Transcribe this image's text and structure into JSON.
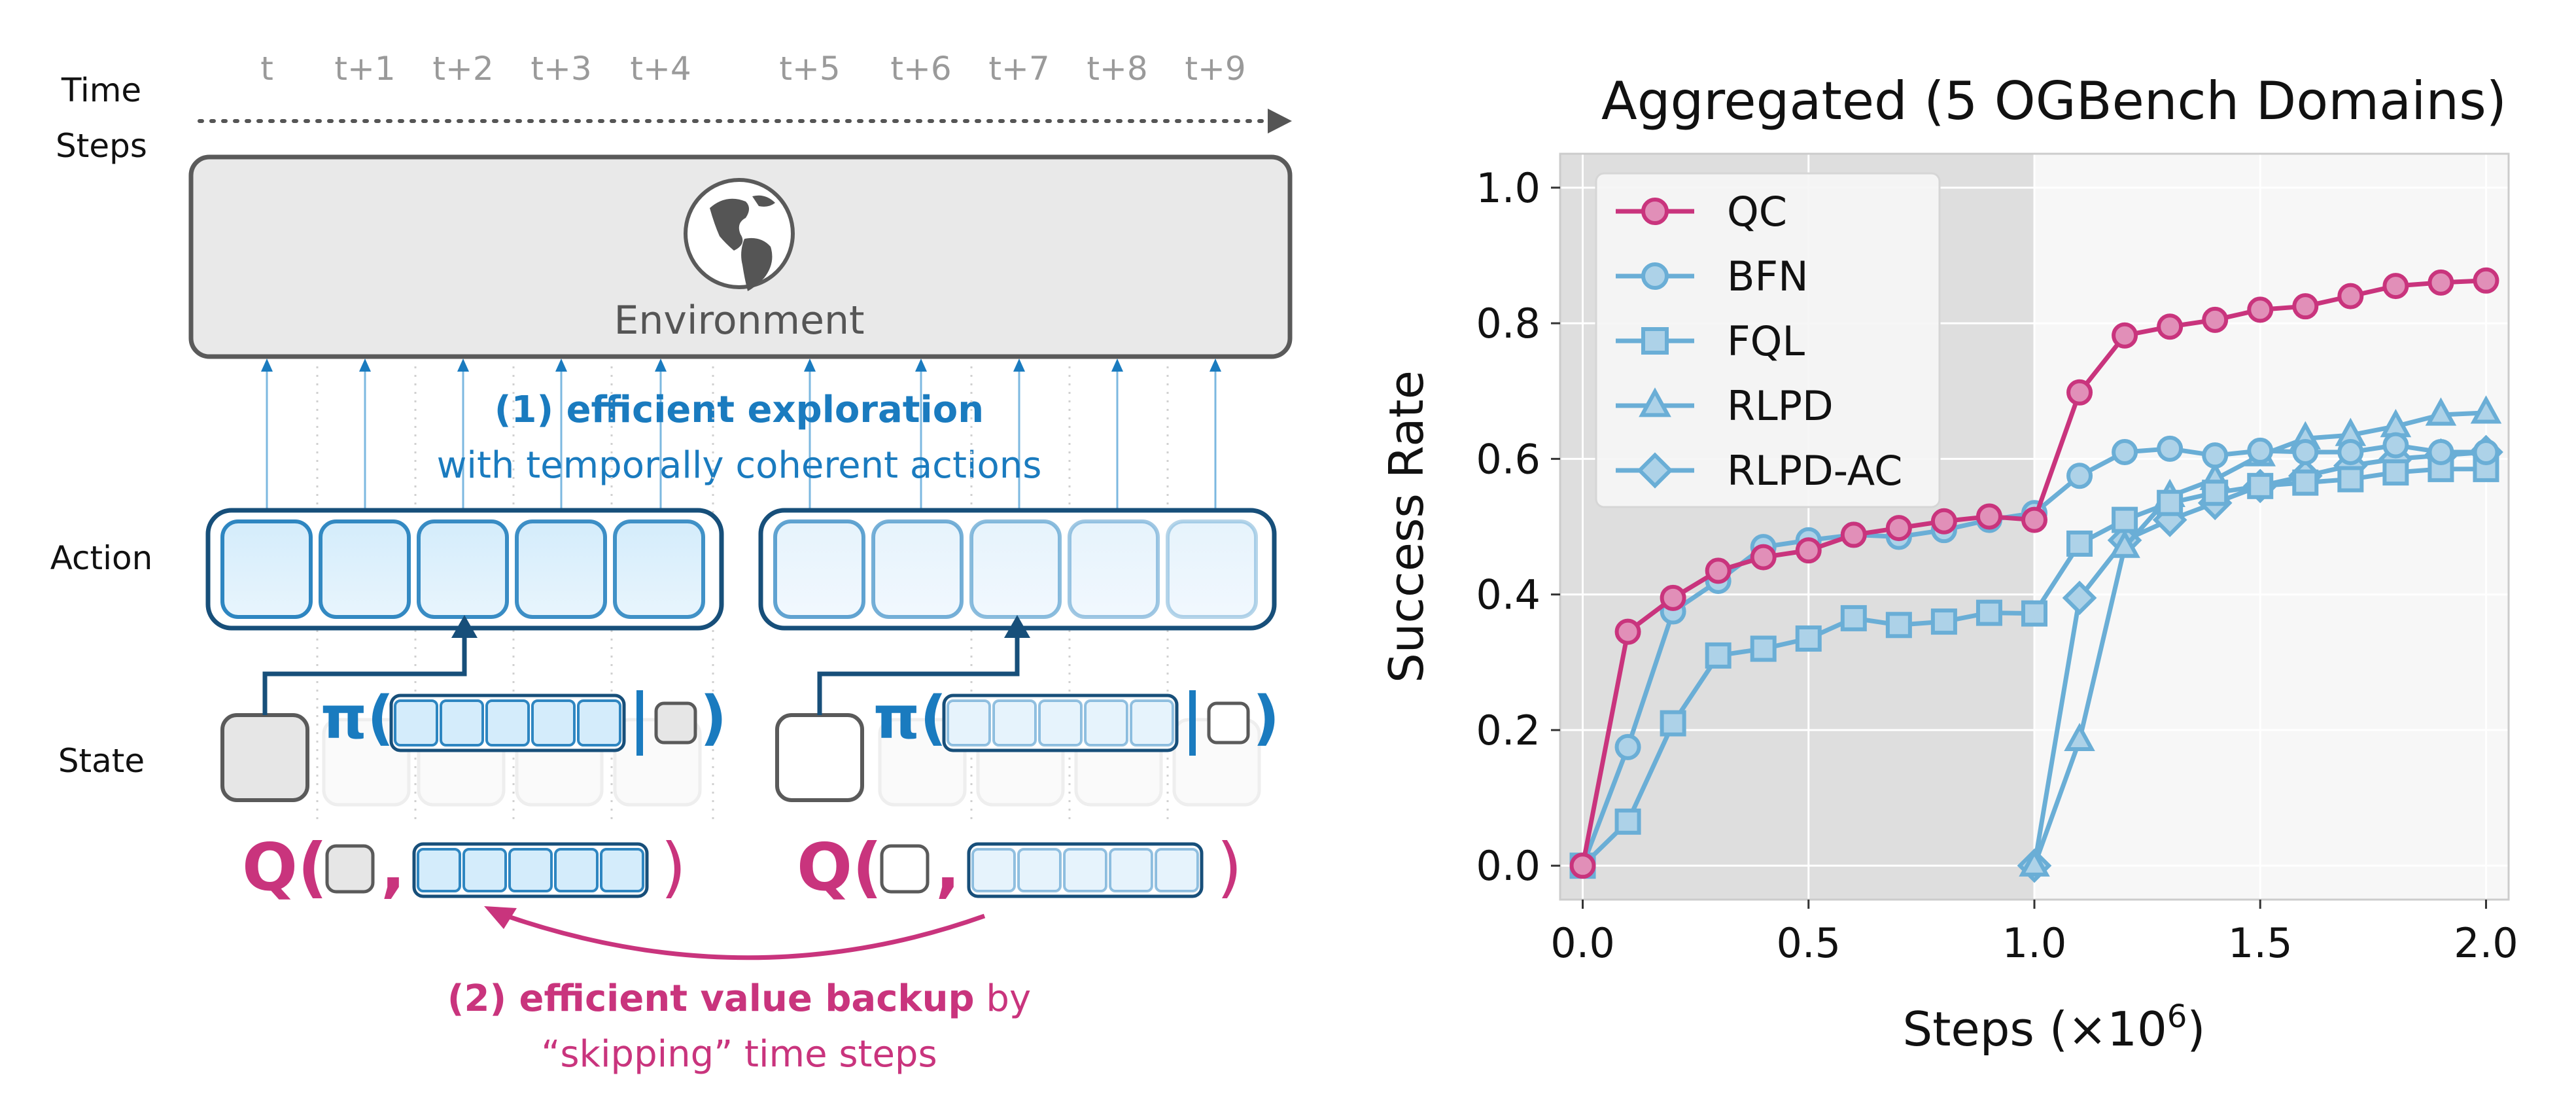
{
  "diagram": {
    "time_axis_label_line1": "Time",
    "time_axis_label_line2": "Steps",
    "time_steps": [
      "t",
      "t+1",
      "t+2",
      "t+3",
      "t+4",
      "t+5",
      "t+6",
      "t+7",
      "t+8",
      "t+9"
    ],
    "environment_label": "Environment",
    "row_labels": {
      "action": "Action",
      "state": "State"
    },
    "exploration_title": "(1) efficient exploration",
    "exploration_subtitle": "with temporally coherent actions",
    "policy_symbol": "π(",
    "q_symbol": "Q(",
    "comma": ",",
    "close_paren": ")",
    "backup_title": "(2) efficient value backup",
    "backup_suffix": " by",
    "backup_line2": "“skipping” time steps",
    "colors": {
      "blue": "#1a7bbf",
      "dark_blue": "#174f7a",
      "pink": "#c9347d",
      "gray": "#5a5a5a"
    }
  },
  "chart_data": {
    "type": "line",
    "title": "Aggregated (5 OGBench Domains)",
    "xlabel": "Steps (×10",
    "xlabel_superscript": "6",
    "xlabel_suffix": ")",
    "ylabel": "Success Rate",
    "xlim": [
      -0.05,
      2.05
    ],
    "ylim": [
      -0.05,
      1.05
    ],
    "xticks": [
      0.0,
      0.5,
      1.0,
      1.5,
      2.0
    ],
    "xtick_labels": [
      "0.0",
      "0.5",
      "1.0",
      "1.5",
      "2.0"
    ],
    "yticks": [
      0.0,
      0.2,
      0.4,
      0.6,
      0.8,
      1.0
    ],
    "ytick_labels": [
      "0.0",
      "0.2",
      "0.4",
      "0.6",
      "0.8",
      "1.0"
    ],
    "offline_region": [
      -0.05,
      1.0
    ],
    "grid": true,
    "legend_position": "top-left",
    "series": [
      {
        "name": "QC",
        "color": "#c9347d",
        "marker": "circle",
        "x": [
          0,
          0.1,
          0.2,
          0.3,
          0.4,
          0.5,
          0.6,
          0.7,
          0.8,
          0.9,
          1.0,
          1.1,
          1.2,
          1.3,
          1.4,
          1.5,
          1.6,
          1.7,
          1.8,
          1.9,
          2.0
        ],
        "y": [
          0,
          0.345,
          0.395,
          0.435,
          0.455,
          0.465,
          0.488,
          0.498,
          0.508,
          0.515,
          0.51,
          0.698,
          0.782,
          0.795,
          0.805,
          0.82,
          0.825,
          0.84,
          0.855,
          0.86,
          0.863
        ]
      },
      {
        "name": "BFN",
        "color": "#6aaed6",
        "marker": "circle",
        "x": [
          0,
          0.1,
          0.2,
          0.3,
          0.4,
          0.5,
          0.6,
          0.7,
          0.8,
          0.9,
          1.0,
          1.1,
          1.2,
          1.3,
          1.4,
          1.5,
          1.6,
          1.7,
          1.8,
          1.9,
          2.0
        ],
        "y": [
          0,
          0.175,
          0.375,
          0.42,
          0.47,
          0.48,
          0.488,
          0.485,
          0.495,
          0.51,
          0.52,
          0.575,
          0.61,
          0.615,
          0.605,
          0.612,
          0.61,
          0.61,
          0.62,
          0.61,
          0.61
        ]
      },
      {
        "name": "FQL",
        "color": "#6aaed6",
        "marker": "square",
        "x": [
          0,
          0.1,
          0.2,
          0.3,
          0.4,
          0.5,
          0.6,
          0.7,
          0.8,
          0.9,
          1.0,
          1.1,
          1.2,
          1.3,
          1.4,
          1.5,
          1.6,
          1.7,
          1.8,
          1.9,
          2.0
        ],
        "y": [
          0,
          0.065,
          0.21,
          0.31,
          0.32,
          0.335,
          0.365,
          0.355,
          0.36,
          0.373,
          0.372,
          0.475,
          0.51,
          0.535,
          0.55,
          0.56,
          0.565,
          0.57,
          0.58,
          0.585,
          0.585
        ]
      },
      {
        "name": "RLPD",
        "color": "#6aaed6",
        "marker": "triangle",
        "x": [
          1.0,
          1.1,
          1.2,
          1.3,
          1.4,
          1.5,
          1.6,
          1.7,
          1.8,
          1.9,
          2.0
        ],
        "y": [
          0,
          0.185,
          0.47,
          0.545,
          0.57,
          0.605,
          0.63,
          0.635,
          0.648,
          0.665,
          0.668
        ]
      },
      {
        "name": "RLPD-AC",
        "color": "#6aaed6",
        "marker": "diamond",
        "x": [
          1.0,
          1.1,
          1.2,
          1.3,
          1.4,
          1.5,
          1.6,
          1.7,
          1.8,
          1.9,
          2.0
        ],
        "y": [
          0,
          0.395,
          0.48,
          0.51,
          0.535,
          0.56,
          0.575,
          0.59,
          0.6,
          0.605,
          0.61
        ]
      }
    ]
  }
}
